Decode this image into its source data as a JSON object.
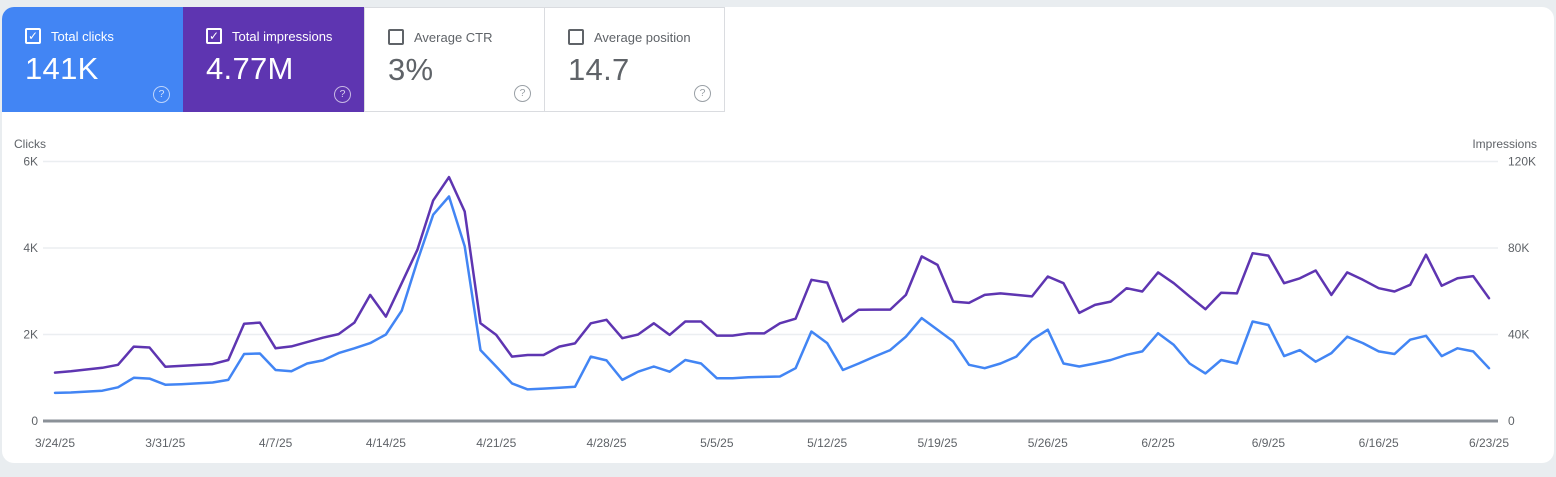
{
  "colors": {
    "clicks_blue": "#4285f4",
    "impressions_purple": "#5e35b1",
    "page_background": "#e9edf0",
    "panel_background": "#ffffff",
    "muted_text": "#5f6368",
    "grid_line": "#ebeef1",
    "zero_axis_line": "#8b9198",
    "tile_border": "#dadce0"
  },
  "icons": {
    "help_glyph": "?",
    "check_glyph": "✓"
  },
  "cards": [
    {
      "label": "Total clicks",
      "value": "141K",
      "checked": true,
      "bg": "#4285f4"
    },
    {
      "label": "Total impressions",
      "value": "4.77M",
      "checked": true,
      "bg": "#5e35b1"
    },
    {
      "label": "Average CTR",
      "value": "3%",
      "checked": false,
      "bg": "#ffffff"
    },
    {
      "label": "Average position",
      "value": "14.7",
      "checked": false,
      "bg": "#ffffff"
    }
  ],
  "chart": {
    "left_axis_title": "Clicks",
    "right_axis_title": "Impressions",
    "left_ticks": [
      {
        "label": "6K",
        "value": 6000
      },
      {
        "label": "4K",
        "value": 4000
      },
      {
        "label": "2K",
        "value": 2000
      },
      {
        "label": "0",
        "value": 0
      }
    ],
    "right_ticks": [
      {
        "label": "120K",
        "value": 120000
      },
      {
        "label": "80K",
        "value": 80000
      },
      {
        "label": "40K",
        "value": 40000
      },
      {
        "label": "0",
        "value": 0
      }
    ]
  },
  "chart_data": {
    "type": "line",
    "title": "",
    "xlabel": "",
    "grid": true,
    "legend_position": "none",
    "x_tick_every": 7,
    "x_tick_labels": [
      "3/24/25",
      "3/31/25",
      "4/7/25",
      "4/14/25",
      "4/21/25",
      "4/28/25",
      "5/5/25",
      "5/12/25",
      "5/19/25",
      "5/26/25",
      "6/2/25",
      "6/9/25",
      "6/16/25",
      "6/23/25"
    ],
    "x": [
      "3/24/25",
      "3/25/25",
      "3/26/25",
      "3/27/25",
      "3/28/25",
      "3/29/25",
      "3/30/25",
      "3/31/25",
      "4/1/25",
      "4/2/25",
      "4/3/25",
      "4/4/25",
      "4/5/25",
      "4/6/25",
      "4/7/25",
      "4/8/25",
      "4/9/25",
      "4/10/25",
      "4/11/25",
      "4/12/25",
      "4/13/25",
      "4/14/25",
      "4/15/25",
      "4/16/25",
      "4/17/25",
      "4/18/25",
      "4/19/25",
      "4/20/25",
      "4/21/25",
      "4/22/25",
      "4/23/25",
      "4/24/25",
      "4/25/25",
      "4/26/25",
      "4/27/25",
      "4/28/25",
      "4/29/25",
      "4/30/25",
      "5/1/25",
      "5/2/25",
      "5/3/25",
      "5/4/25",
      "5/5/25",
      "5/6/25",
      "5/7/25",
      "5/8/25",
      "5/9/25",
      "5/10/25",
      "5/11/25",
      "5/12/25",
      "5/13/25",
      "5/14/25",
      "5/15/25",
      "5/16/25",
      "5/17/25",
      "5/18/25",
      "5/19/25",
      "5/20/25",
      "5/21/25",
      "5/22/25",
      "5/23/25",
      "5/24/25",
      "5/25/25",
      "5/26/25",
      "5/27/25",
      "5/28/25",
      "5/29/25",
      "5/30/25",
      "5/31/25",
      "6/1/25",
      "6/2/25",
      "6/3/25",
      "6/4/25",
      "6/5/25",
      "6/6/25",
      "6/7/25",
      "6/8/25",
      "6/9/25",
      "6/10/25",
      "6/11/25",
      "6/12/25",
      "6/13/25",
      "6/14/25",
      "6/15/25",
      "6/16/25",
      "6/17/25",
      "6/18/25",
      "6/19/25",
      "6/20/25",
      "6/21/25",
      "6/22/25",
      "6/23/25"
    ],
    "left_ylim": [
      0,
      6000
    ],
    "right_ylim": [
      0,
      120000
    ],
    "series": [
      {
        "name": "Total clicks",
        "axis": "left",
        "color": "#4285f4",
        "values": [
          650,
          660,
          680,
          700,
          780,
          1000,
          980,
          840,
          850,
          870,
          890,
          950,
          1550,
          1560,
          1180,
          1150,
          1330,
          1400,
          1570,
          1680,
          1800,
          2000,
          2550,
          3700,
          4770,
          5190,
          4040,
          1640,
          1260,
          870,
          730,
          750,
          770,
          790,
          1490,
          1400,
          950,
          1140,
          1260,
          1140,
          1410,
          1330,
          990,
          990,
          1010,
          1020,
          1030,
          1220,
          2070,
          1800,
          1180,
          1330,
          1490,
          1640,
          1950,
          2380,
          2110,
          1840,
          1300,
          1220,
          1330,
          1490,
          1880,
          2110,
          1330,
          1260,
          1330,
          1410,
          1530,
          1610,
          2030,
          1760,
          1330,
          1100,
          1410,
          1330,
          2300,
          2220,
          1500,
          1640,
          1370,
          1570,
          1950,
          1800,
          1610,
          1550,
          1880,
          1970,
          1500,
          1680,
          1610,
          1220
        ]
      },
      {
        "name": "Total impressions",
        "axis": "right",
        "color": "#5e35b1",
        "values": [
          22400,
          23000,
          23800,
          24600,
          26000,
          34400,
          34000,
          25100,
          25500,
          25900,
          26300,
          28200,
          45000,
          45500,
          33600,
          34500,
          36500,
          38500,
          40200,
          45500,
          58300,
          48300,
          63700,
          79200,
          102000,
          112800,
          96900,
          45200,
          39800,
          29800,
          30500,
          30500,
          34400,
          35900,
          45200,
          46800,
          38300,
          40000,
          45200,
          39800,
          46000,
          46000,
          39500,
          39500,
          40500,
          40500,
          45200,
          47300,
          65300,
          64000,
          46000,
          51400,
          51500,
          51500,
          58300,
          76100,
          72200,
          55200,
          54600,
          58300,
          59000,
          58300,
          57600,
          66800,
          63700,
          50000,
          53700,
          55200,
          61400,
          59900,
          68700,
          63700,
          57600,
          51700,
          59300,
          59000,
          77600,
          76500,
          63700,
          66000,
          69600,
          58300,
          68700,
          65300,
          61400,
          59900,
          63000,
          76900,
          62500,
          66000,
          67000,
          56800
        ]
      }
    ]
  }
}
